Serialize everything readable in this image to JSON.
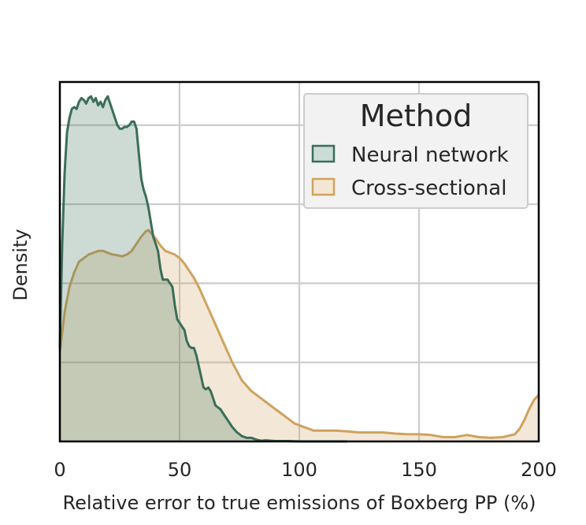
{
  "chart_data": {
    "type": "area",
    "title": "",
    "xlabel": "Relative error to true emissions of Boxberg PP (%)",
    "ylabel": "Density",
    "xlim": [
      0,
      200
    ],
    "ylim": [
      0,
      1
    ],
    "xticks": [
      0,
      50,
      100,
      150,
      200
    ],
    "xtick_labels": [
      "0",
      "50",
      "100",
      "150",
      "200"
    ],
    "yticks_hidden": true,
    "ygrid": [
      0.22,
      0.44,
      0.66,
      0.88
    ],
    "grid": true,
    "legend": {
      "title": "Method",
      "position": "top-right",
      "entries": [
        "Neural network",
        "Cross-sectional"
      ]
    },
    "series": [
      {
        "name": "Neural network",
        "color": "#3a6e58",
        "fill": "#cbdcd6",
        "x": [
          0,
          1,
          2,
          3,
          4,
          5,
          6,
          7,
          8,
          9,
          10,
          11,
          12,
          13,
          14,
          15,
          16,
          17,
          18,
          19,
          20,
          21,
          22,
          23,
          24,
          25,
          26,
          27,
          28,
          29,
          30,
          31,
          32,
          33,
          34,
          35,
          36,
          37,
          38,
          39,
          40,
          41,
          42,
          43,
          44,
          45,
          46,
          47,
          48,
          49,
          50,
          51,
          52,
          53,
          54,
          55,
          56,
          57,
          58,
          59,
          60,
          61,
          62,
          63,
          64,
          65,
          66,
          67,
          68,
          69,
          70,
          72,
          74,
          76,
          78,
          80,
          82,
          84,
          86,
          88,
          90,
          95,
          100,
          110,
          120
        ],
        "y": [
          0.26,
          0.55,
          0.75,
          0.86,
          0.9,
          0.925,
          0.93,
          0.925,
          0.945,
          0.955,
          0.95,
          0.94,
          0.955,
          0.96,
          0.945,
          0.955,
          0.935,
          0.945,
          0.93,
          0.95,
          0.96,
          0.94,
          0.92,
          0.9,
          0.88,
          0.87,
          0.87,
          0.875,
          0.875,
          0.88,
          0.89,
          0.89,
          0.87,
          0.8,
          0.73,
          0.7,
          0.68,
          0.65,
          0.61,
          0.57,
          0.55,
          0.53,
          0.48,
          0.45,
          0.45,
          0.45,
          0.44,
          0.43,
          0.38,
          0.34,
          0.33,
          0.32,
          0.31,
          0.28,
          0.265,
          0.26,
          0.26,
          0.24,
          0.21,
          0.18,
          0.15,
          0.145,
          0.15,
          0.14,
          0.12,
          0.1,
          0.095,
          0.09,
          0.08,
          0.07,
          0.06,
          0.04,
          0.025,
          0.015,
          0.01,
          0.01,
          0.005,
          0.002,
          0.003,
          0.002,
          0.001,
          0.001,
          0.0,
          0.0,
          0.0
        ]
      },
      {
        "name": "Cross-sectional",
        "color": "#cfa25e",
        "fill": "#f3e7d4",
        "x": [
          0,
          2,
          4,
          6,
          8,
          10,
          12,
          14,
          16,
          18,
          20,
          22,
          24,
          26,
          28,
          30,
          32,
          34,
          36,
          37,
          38,
          40,
          42,
          44,
          46,
          48,
          50,
          52,
          54,
          56,
          58,
          60,
          62,
          64,
          66,
          68,
          70,
          72,
          74,
          76,
          78,
          80,
          82,
          84,
          86,
          88,
          90,
          92,
          94,
          96,
          98,
          100,
          102,
          104,
          106,
          108,
          110,
          115,
          120,
          125,
          130,
          135,
          140,
          145,
          150,
          155,
          160,
          165,
          170,
          175,
          180,
          185,
          190,
          192,
          194,
          196,
          198,
          200
        ],
        "y": [
          0.25,
          0.36,
          0.43,
          0.47,
          0.5,
          0.51,
          0.52,
          0.525,
          0.53,
          0.53,
          0.525,
          0.52,
          0.518,
          0.515,
          0.52,
          0.53,
          0.55,
          0.57,
          0.585,
          0.588,
          0.58,
          0.565,
          0.545,
          0.53,
          0.525,
          0.52,
          0.51,
          0.495,
          0.475,
          0.455,
          0.43,
          0.4,
          0.37,
          0.34,
          0.31,
          0.28,
          0.25,
          0.22,
          0.195,
          0.17,
          0.155,
          0.14,
          0.13,
          0.12,
          0.11,
          0.1,
          0.09,
          0.08,
          0.07,
          0.06,
          0.05,
          0.045,
          0.04,
          0.035,
          0.03,
          0.03,
          0.03,
          0.03,
          0.028,
          0.025,
          0.025,
          0.025,
          0.022,
          0.02,
          0.02,
          0.018,
          0.012,
          0.012,
          0.018,
          0.012,
          0.01,
          0.012,
          0.02,
          0.035,
          0.06,
          0.09,
          0.115,
          0.13
        ]
      }
    ]
  }
}
